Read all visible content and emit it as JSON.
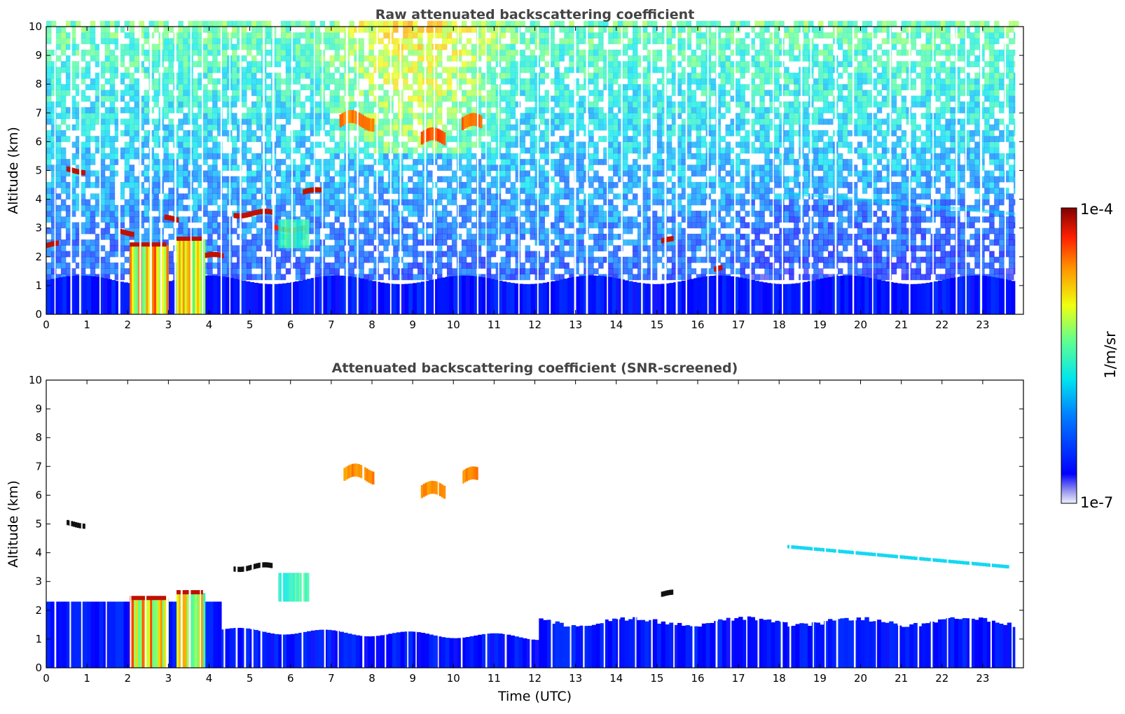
{
  "chart_data": [
    {
      "type": "heatmap",
      "title": "Raw attenuated backscattering coefficient",
      "xlabel": "",
      "ylabel": "Altitude (km)",
      "xlim": [
        0,
        24
      ],
      "ylim": [
        0,
        10
      ],
      "x_ticks": [
        "0",
        "1",
        "2",
        "3",
        "4",
        "5",
        "6",
        "7",
        "8",
        "9",
        "10",
        "11",
        "12",
        "13",
        "14",
        "15",
        "16",
        "17",
        "18",
        "19",
        "20",
        "21",
        "22",
        "23"
      ],
      "y_ticks": [
        "0",
        "1",
        "2",
        "3",
        "4",
        "5",
        "6",
        "7",
        "8",
        "9",
        "10"
      ],
      "color_scale": "log",
      "value_range": [
        "1e-7",
        "1e-4"
      ],
      "features": [
        {
          "kind": "boundary-layer",
          "t_start": 0,
          "t_end": 23.8,
          "alt_top": 1.2,
          "level": 0.15
        },
        {
          "kind": "cloud-column",
          "t_start": 2.05,
          "t_end": 2.95,
          "alt_top": 2.4,
          "level": 0.7
        },
        {
          "kind": "cloud-column",
          "t_start": 3.2,
          "t_end": 3.85,
          "alt_top": 2.6,
          "level": 0.65
        },
        {
          "kind": "cloud-layer",
          "t_start": 0.0,
          "t_end": 0.3,
          "alt": 2.4,
          "level": 0.95
        },
        {
          "kind": "cloud-layer",
          "t_start": 1.8,
          "t_end": 2.1,
          "alt": 2.85,
          "level": 0.95
        },
        {
          "kind": "cloud-layer",
          "t_start": 0.5,
          "t_end": 0.95,
          "alt": 5.0,
          "level": 0.95
        },
        {
          "kind": "cloud-layer",
          "t_start": 2.9,
          "t_end": 3.2,
          "alt": 3.3,
          "level": 0.95
        },
        {
          "kind": "cloud-layer",
          "t_start": 3.9,
          "t_end": 4.3,
          "alt": 2.0,
          "level": 0.95
        },
        {
          "kind": "cloud-layer",
          "t_start": 4.6,
          "t_end": 5.5,
          "alt": 3.5,
          "level": 0.95
        },
        {
          "kind": "cloud-layer",
          "t_start": 5.6,
          "t_end": 6.3,
          "alt": 3.0,
          "level": 0.9
        },
        {
          "kind": "cloud-layer",
          "t_start": 6.3,
          "t_end": 6.7,
          "alt": 4.25,
          "level": 0.95
        },
        {
          "kind": "cloud-layer",
          "t_start": 15.1,
          "t_end": 15.4,
          "alt": 2.55,
          "level": 0.95
        },
        {
          "kind": "cloud-layer",
          "t_start": 16.4,
          "t_end": 16.6,
          "alt": 1.55,
          "level": 0.95
        },
        {
          "kind": "cloud-patch",
          "t_start": 5.7,
          "t_end": 6.4,
          "alt_low": 2.3,
          "alt_high": 3.3,
          "level": 0.5
        },
        {
          "kind": "cirrus",
          "t_start": 7.2,
          "t_end": 8.0,
          "alt": 6.7,
          "level": 0.82
        },
        {
          "kind": "cirrus",
          "t_start": 9.2,
          "t_end": 9.8,
          "alt": 6.1,
          "level": 0.85
        },
        {
          "kind": "cirrus",
          "t_start": 10.2,
          "t_end": 10.7,
          "alt": 6.6,
          "level": 0.83
        },
        {
          "kind": "aerosol-layer",
          "t_start": 18.2,
          "t_end": 23.8,
          "alt": 3.6,
          "level": 0.4
        }
      ]
    },
    {
      "type": "heatmap",
      "title": "Attenuated backscattering coefficient (SNR-screened)",
      "xlabel": "Time (UTC)",
      "ylabel": "Altitude (km)",
      "xlim": [
        0,
        24
      ],
      "ylim": [
        0,
        10
      ],
      "x_ticks": [
        "0",
        "1",
        "2",
        "3",
        "4",
        "5",
        "6",
        "7",
        "8",
        "9",
        "10",
        "11",
        "12",
        "13",
        "14",
        "15",
        "16",
        "17",
        "18",
        "19",
        "20",
        "21",
        "22",
        "23"
      ],
      "y_ticks": [
        "0",
        "1",
        "2",
        "3",
        "4",
        "5",
        "6",
        "7",
        "8",
        "9",
        "10"
      ],
      "color_scale": "log",
      "value_range": [
        "1e-7",
        "1e-4"
      ],
      "features": [
        {
          "kind": "boundary-layer",
          "t_start": 0,
          "t_end": 23.8,
          "alt_top": 1.7,
          "level": 0.15
        },
        {
          "kind": "cloud-column",
          "t_start": 2.05,
          "t_end": 2.95,
          "alt_top": 2.4,
          "level": 0.7
        },
        {
          "kind": "cloud-column",
          "t_start": 3.2,
          "t_end": 3.85,
          "alt_top": 2.6,
          "level": 0.65
        },
        {
          "kind": "cloud-layer",
          "t_start": 0.5,
          "t_end": 0.95,
          "alt": 5.0,
          "level": 1.0
        },
        {
          "kind": "cloud-layer",
          "t_start": 4.6,
          "t_end": 5.5,
          "alt": 3.5,
          "level": 1.0
        },
        {
          "kind": "cloud-layer",
          "t_start": 15.1,
          "t_end": 15.4,
          "alt": 2.55,
          "level": 1.0
        },
        {
          "kind": "cloud-patch",
          "t_start": 5.7,
          "t_end": 6.4,
          "alt_low": 2.3,
          "alt_high": 3.3,
          "level": 0.5
        },
        {
          "kind": "cirrus",
          "t_start": 7.3,
          "t_end": 8.0,
          "alt": 6.7,
          "level": 0.8
        },
        {
          "kind": "cirrus",
          "t_start": 9.2,
          "t_end": 9.8,
          "alt": 6.1,
          "level": 0.8
        },
        {
          "kind": "cirrus",
          "t_start": 10.2,
          "t_end": 10.6,
          "alt": 6.6,
          "level": 0.8
        },
        {
          "kind": "aerosol-layer",
          "t_start": 18.2,
          "t_end": 23.6,
          "alt": 3.6,
          "level": 0.4
        }
      ]
    }
  ],
  "colorbar": {
    "label": "1/m/sr",
    "max_label": "1e-4",
    "min_label": "1e-7",
    "colormap": "jet"
  }
}
